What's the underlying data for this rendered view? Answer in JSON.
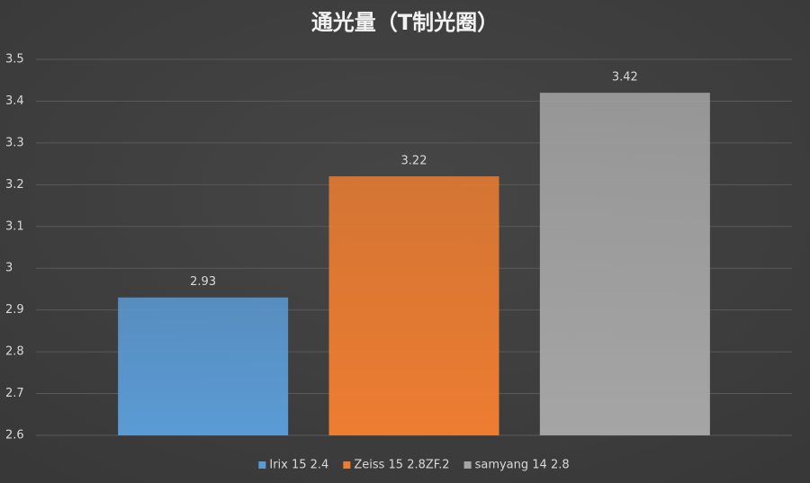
{
  "chart_data": {
    "type": "bar",
    "title": "通光量（T制光圈）",
    "categories": [
      null
    ],
    "series": [
      {
        "name": "Irix 15 2.4",
        "color": "#5b9bd5",
        "values": [
          2.93
        ]
      },
      {
        "name": "Zeiss 15 2.8ZF.2",
        "color": "#ed7d31",
        "values": [
          3.22
        ]
      },
      {
        "name": "samyang 14 2.8",
        "color": "#a5a5a5",
        "values": [
          3.42
        ]
      }
    ],
    "ylim": [
      2.6,
      3.5
    ],
    "yticks": [
      2.6,
      2.7,
      2.8,
      2.9,
      3,
      3.1,
      3.2,
      3.3,
      3.4,
      3.5
    ],
    "grid": true,
    "legend": "bottom"
  }
}
